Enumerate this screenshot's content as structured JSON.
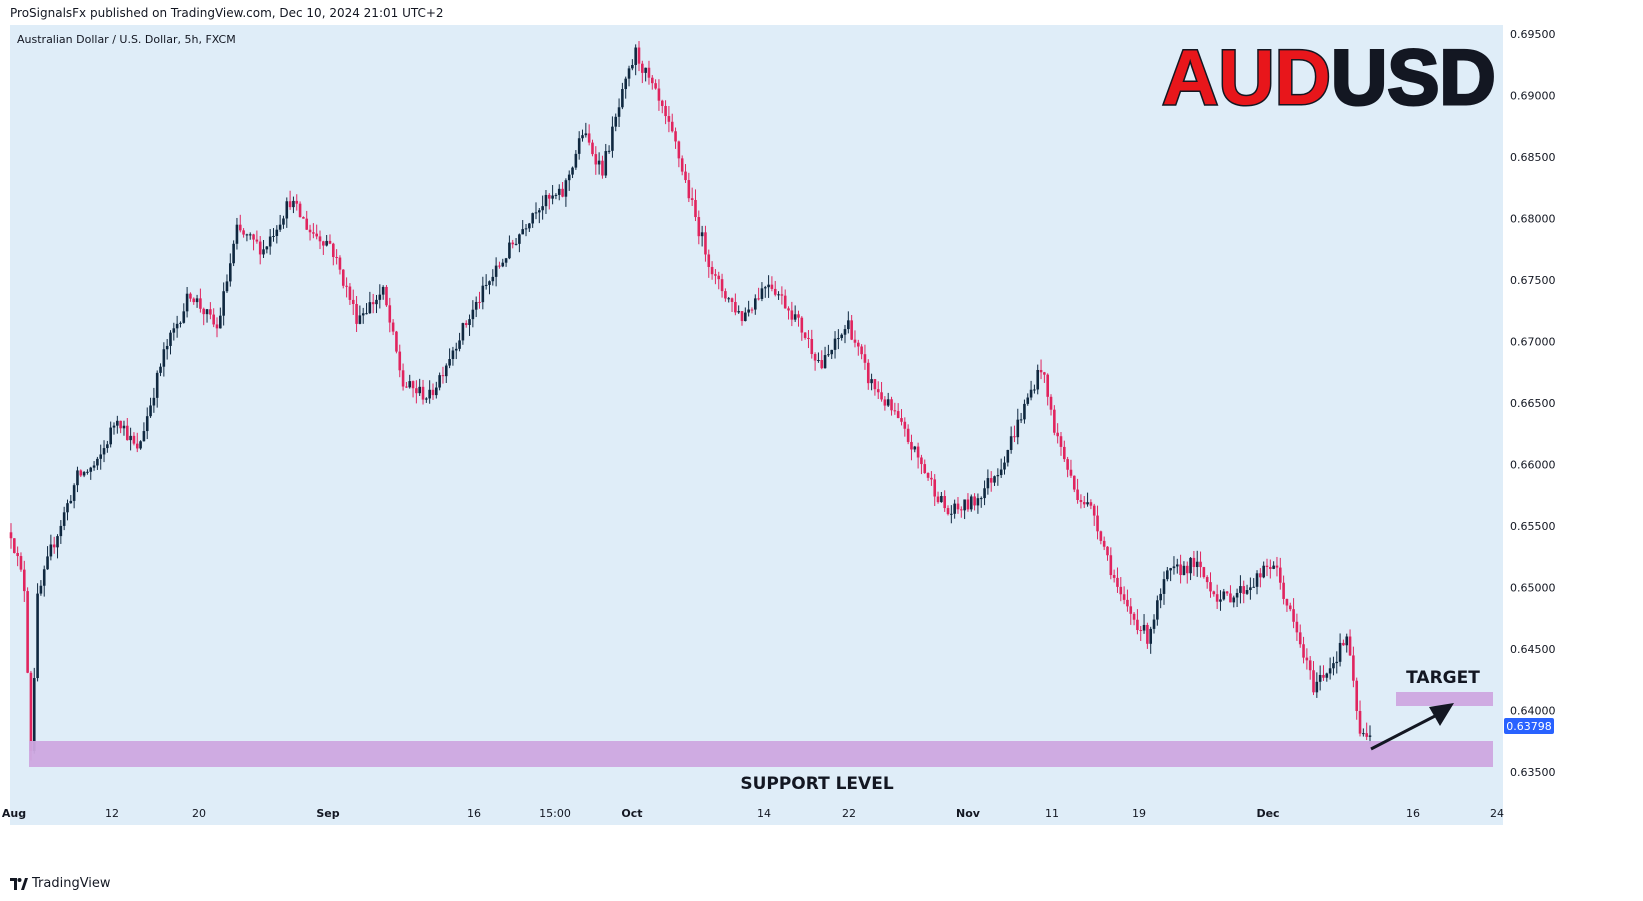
{
  "header": {
    "published_line": "ProSignalsFx published on TradingView.com, Dec 10, 2024 21:01 UTC+2"
  },
  "footer": {
    "brand": "TradingView"
  },
  "chart_data": {
    "type": "candlestick",
    "symbol_line": "Australian Dollar / U.S. Dollar, 5h, FXCM",
    "title_red": "AUD",
    "title_black": "USD",
    "ylim": [
      0.6335,
      0.6955
    ],
    "y_ticks": [
      "0.69500",
      "0.69000",
      "0.68500",
      "0.68000",
      "0.67500",
      "0.67000",
      "0.66500",
      "0.66000",
      "0.65500",
      "0.65000",
      "0.64500",
      "0.64000",
      "0.63500"
    ],
    "x_ticks": [
      {
        "label": "Aug",
        "bold": true
      },
      {
        "label": "12",
        "bold": false
      },
      {
        "label": "20",
        "bold": false
      },
      {
        "label": "Sep",
        "bold": true
      },
      {
        "label": "16",
        "bold": false
      },
      {
        "label": "15:00",
        "bold": false
      },
      {
        "label": "Oct",
        "bold": true
      },
      {
        "label": "14",
        "bold": false
      },
      {
        "label": "22",
        "bold": false
      },
      {
        "label": "Nov",
        "bold": true
      },
      {
        "label": "11",
        "bold": false
      },
      {
        "label": "19",
        "bold": false
      },
      {
        "label": "Dec",
        "bold": true
      },
      {
        "label": "16",
        "bold": false
      },
      {
        "label": "24",
        "bold": false
      }
    ],
    "current_price": "0.63798",
    "price_path": [
      [
        0,
        0.6545
      ],
      [
        4,
        0.65
      ],
      [
        6,
        0.637
      ],
      [
        8,
        0.649
      ],
      [
        12,
        0.653
      ],
      [
        20,
        0.659
      ],
      [
        26,
        0.66
      ],
      [
        32,
        0.664
      ],
      [
        38,
        0.661
      ],
      [
        46,
        0.669
      ],
      [
        54,
        0.674
      ],
      [
        62,
        0.671
      ],
      [
        68,
        0.679
      ],
      [
        76,
        0.6775
      ],
      [
        84,
        0.6815
      ],
      [
        90,
        0.679
      ],
      [
        96,
        0.678
      ],
      [
        104,
        0.672
      ],
      [
        112,
        0.674
      ],
      [
        118,
        0.6665
      ],
      [
        126,
        0.6655
      ],
      [
        134,
        0.67
      ],
      [
        142,
        0.674
      ],
      [
        150,
        0.6775
      ],
      [
        158,
        0.681
      ],
      [
        166,
        0.682
      ],
      [
        172,
        0.687
      ],
      [
        178,
        0.684
      ],
      [
        184,
        0.69
      ],
      [
        188,
        0.6935
      ],
      [
        194,
        0.69
      ],
      [
        200,
        0.686
      ],
      [
        206,
        0.68
      ],
      [
        212,
        0.675
      ],
      [
        220,
        0.672
      ],
      [
        228,
        0.675
      ],
      [
        236,
        0.672
      ],
      [
        244,
        0.668
      ],
      [
        252,
        0.6715
      ],
      [
        258,
        0.667
      ],
      [
        266,
        0.664
      ],
      [
        274,
        0.66
      ],
      [
        282,
        0.656
      ],
      [
        290,
        0.657
      ],
      [
        298,
        0.66
      ],
      [
        304,
        0.664
      ],
      [
        310,
        0.668
      ],
      [
        314,
        0.663
      ],
      [
        320,
        0.658
      ],
      [
        326,
        0.656
      ],
      [
        334,
        0.649
      ],
      [
        342,
        0.646
      ],
      [
        348,
        0.651
      ],
      [
        356,
        0.652
      ],
      [
        364,
        0.649
      ],
      [
        372,
        0.65
      ],
      [
        380,
        0.652
      ],
      [
        386,
        0.647
      ],
      [
        392,
        0.642
      ],
      [
        398,
        0.644
      ],
      [
        402,
        0.646
      ],
      [
        406,
        0.638
      ],
      [
        408,
        0.6378
      ]
    ],
    "annotations": {
      "support_label": "SUPPORT LEVEL",
      "support_range": [
        0.635,
        0.637
      ],
      "target_label": "TARGET",
      "target_range": [
        0.64,
        0.641
      ]
    },
    "colors": {
      "background": "#dfedf8",
      "up": "#0f2840",
      "down": "#e0245e",
      "zone": "#cea8e0",
      "price_label": "#2962ff",
      "title_red": "#e8161b"
    }
  }
}
